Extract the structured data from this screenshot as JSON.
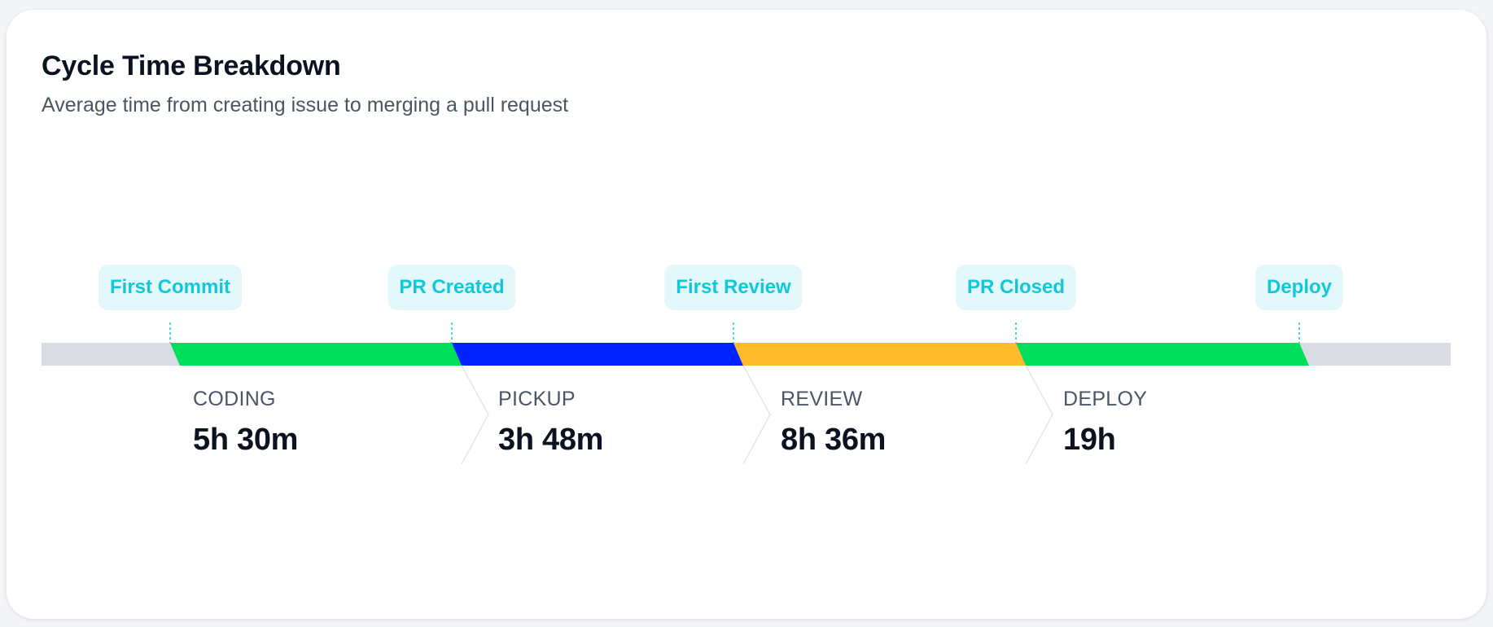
{
  "card": {
    "title": "Cycle Time Breakdown",
    "subtitle": "Average time from creating issue to merging a pull request"
  },
  "milestones": [
    {
      "label": "First Commit"
    },
    {
      "label": "PR Created"
    },
    {
      "label": "First Review"
    },
    {
      "label": "PR Closed"
    },
    {
      "label": "Deploy"
    }
  ],
  "stages": [
    {
      "name": "CODING",
      "value": "5h 30m",
      "color": "#00df5b"
    },
    {
      "name": "PICKUP",
      "value": "3h 48m",
      "color": "#0023ff"
    },
    {
      "name": "REVIEW",
      "value": "8h 36m",
      "color": "#ffbb2b"
    },
    {
      "name": "DEPLOY",
      "value": "19h",
      "color": "#00df5b"
    }
  ],
  "colors": {
    "track": "#d9dce3",
    "milestone_text": "#12c8d8",
    "milestone_bg": "#e3f8fb",
    "connector": "#e4e6ea"
  }
}
